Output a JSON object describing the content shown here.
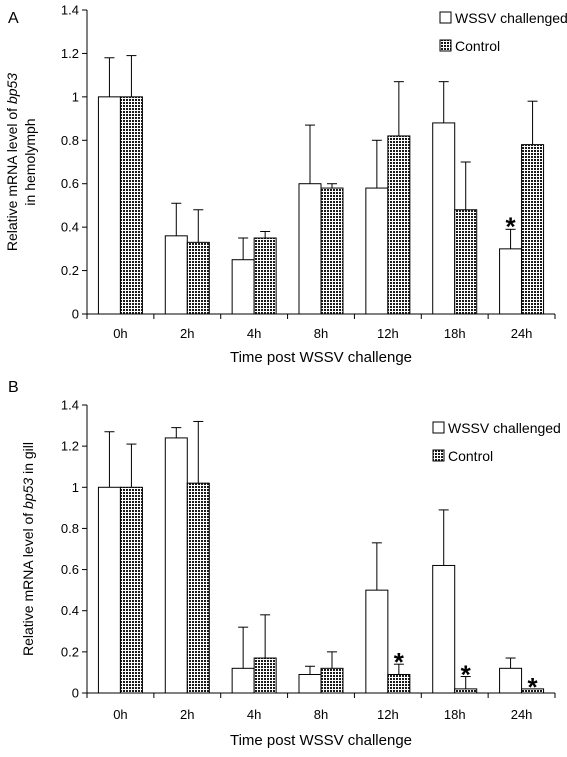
{
  "chart_data": [
    {
      "type": "bar",
      "panel_label": "A",
      "categories": [
        "0h",
        "2h",
        "4h",
        "8h",
        "12h",
        "18h",
        "24h"
      ],
      "series": [
        {
          "name": "WSSV challenged",
          "values": [
            1.0,
            0.36,
            0.25,
            0.6,
            0.58,
            0.88,
            0.3
          ],
          "errors": [
            0.18,
            0.15,
            0.1,
            0.27,
            0.22,
            0.19,
            0.09
          ],
          "fill": "white"
        },
        {
          "name": "Control",
          "values": [
            1.0,
            0.33,
            0.35,
            0.58,
            0.82,
            0.48,
            0.78
          ],
          "errors": [
            0.19,
            0.15,
            0.03,
            0.02,
            0.25,
            0.22,
            0.2
          ],
          "fill": "pattern"
        }
      ],
      "significance": [
        {
          "series": 0,
          "category": 6,
          "mark": "*"
        }
      ],
      "xlabel": "Time post WSSV challenge",
      "ylabel_lines": [
        [
          {
            "text": "Relative mRNA level of "
          },
          {
            "text": "bp53",
            "italic": true
          }
        ],
        [
          {
            "text": "in hemolymph"
          }
        ]
      ],
      "ylim": [
        0,
        1.4
      ],
      "yticks": [
        "0",
        "0.2",
        "0.4",
        "0.6",
        "0.8",
        "1",
        "1.2",
        "1.4"
      ],
      "grid": false,
      "legend_position": "top-right"
    },
    {
      "type": "bar",
      "panel_label": "B",
      "categories": [
        "0h",
        "2h",
        "4h",
        "8h",
        "12h",
        "18h",
        "24h"
      ],
      "series": [
        {
          "name": "WSSV challenged",
          "values": [
            1.0,
            1.24,
            0.12,
            0.09,
            0.5,
            0.62,
            0.12
          ],
          "errors": [
            0.27,
            0.05,
            0.2,
            0.04,
            0.23,
            0.27,
            0.05
          ],
          "fill": "white"
        },
        {
          "name": "Control",
          "values": [
            1.0,
            1.02,
            0.17,
            0.12,
            0.09,
            0.02,
            0.02
          ],
          "errors": [
            0.21,
            0.3,
            0.21,
            0.08,
            0.05,
            0.06,
            0.0
          ],
          "fill": "pattern"
        }
      ],
      "significance": [
        {
          "series": 1,
          "category": 4,
          "mark": "*"
        },
        {
          "series": 1,
          "category": 5,
          "mark": "*"
        },
        {
          "series": 1,
          "category": 6,
          "mark": "*"
        }
      ],
      "xlabel": "Time post WSSV challenge",
      "ylabel_lines": [
        [
          {
            "text": "Relative mRNA level of "
          },
          {
            "text": "bp53",
            "italic": true
          },
          {
            "text": " in gill"
          }
        ]
      ],
      "ylim": [
        0,
        1.4
      ],
      "yticks": [
        "0",
        "0.2",
        "0.4",
        "0.6",
        "0.8",
        "1",
        "1.2",
        "1.4"
      ],
      "grid": false,
      "legend_position": "top-right"
    }
  ]
}
